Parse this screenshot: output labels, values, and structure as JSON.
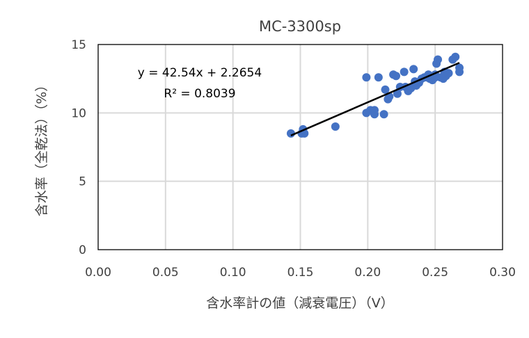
{
  "chart_data": {
    "type": "scatter",
    "title": "MC-3300sp",
    "xlabel": "含水率計の値（減衰電圧）（V）",
    "ylabel": "含水率（全乾法）（%）",
    "xlim": [
      0,
      0.3
    ],
    "ylim": [
      0,
      15
    ],
    "xticks": [
      "0.00",
      "0.05",
      "0.10",
      "0.15",
      "0.20",
      "0.25",
      "0.30"
    ],
    "xtick_values": [
      0,
      0.05,
      0.1,
      0.15,
      0.2,
      0.25,
      0.3
    ],
    "yticks": [
      "0",
      "5",
      "10",
      "15"
    ],
    "ytick_values": [
      0,
      5,
      10,
      15
    ],
    "grid": true,
    "marker_color": "#4472C4",
    "points": [
      [
        0.143,
        8.5
      ],
      [
        0.151,
        8.5
      ],
      [
        0.152,
        8.6
      ],
      [
        0.152,
        8.8
      ],
      [
        0.153,
        8.5
      ],
      [
        0.176,
        9.0
      ],
      [
        0.199,
        12.6
      ],
      [
        0.208,
        12.6
      ],
      [
        0.199,
        10.0
      ],
      [
        0.202,
        10.2
      ],
      [
        0.205,
        10.2
      ],
      [
        0.205,
        9.9
      ],
      [
        0.212,
        9.9
      ],
      [
        0.213,
        11.7
      ],
      [
        0.215,
        11.0
      ],
      [
        0.216,
        11.2
      ],
      [
        0.219,
        12.8
      ],
      [
        0.221,
        12.7
      ],
      [
        0.222,
        11.4
      ],
      [
        0.224,
        11.9
      ],
      [
        0.227,
        13.0
      ],
      [
        0.228,
        11.9
      ],
      [
        0.23,
        11.6
      ],
      [
        0.232,
        11.8
      ],
      [
        0.234,
        13.2
      ],
      [
        0.235,
        12.3
      ],
      [
        0.236,
        12.0
      ],
      [
        0.238,
        12.2
      ],
      [
        0.24,
        12.5
      ],
      [
        0.242,
        12.6
      ],
      [
        0.244,
        12.6
      ],
      [
        0.245,
        12.8
      ],
      [
        0.246,
        12.5
      ],
      [
        0.248,
        12.4
      ],
      [
        0.25,
        12.8
      ],
      [
        0.25,
        12.6
      ],
      [
        0.251,
        13.6
      ],
      [
        0.252,
        13.9
      ],
      [
        0.254,
        12.6
      ],
      [
        0.256,
        12.5
      ],
      [
        0.257,
        13.0
      ],
      [
        0.258,
        12.7
      ],
      [
        0.26,
        12.9
      ],
      [
        0.263,
        13.9
      ],
      [
        0.265,
        14.1
      ],
      [
        0.268,
        13.3
      ],
      [
        0.268,
        13.0
      ]
    ],
    "trendline": {
      "slope": 42.54,
      "intercept": 2.2654,
      "x_range": [
        0.143,
        0.268
      ]
    },
    "equation_label": "y = 42.54x + 2.2654",
    "r2_label": "R² = 0.8039"
  }
}
